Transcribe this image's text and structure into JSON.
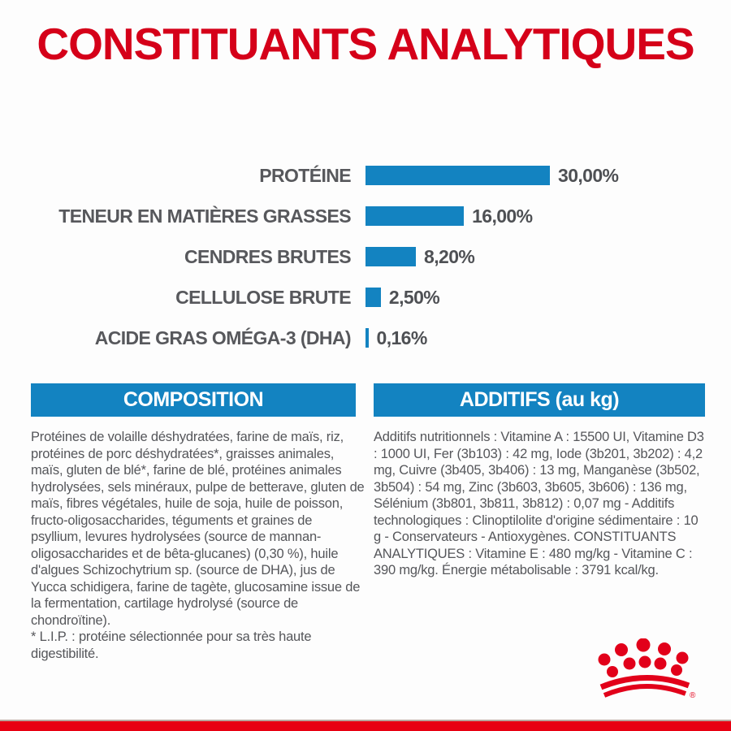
{
  "page": {
    "title": "CONSTITUANTS ANALYTIQUES"
  },
  "chart_data": {
    "type": "bar",
    "orientation": "horizontal",
    "title": "CONSTITUANTS ANALYTIQUES",
    "unit": "%",
    "categories": [
      "PROTÉINE",
      "TENEUR EN MATIÈRES GRASSES",
      "CENDRES BRUTES",
      "CELLULOSE BRUTE",
      "ACIDE GRAS OMÉGA-3 (DHA)"
    ],
    "values": [
      30.0,
      16.0,
      8.2,
      2.5,
      0.16
    ],
    "value_labels": [
      "30,00%",
      "16,00%",
      "8,20%",
      "2,50%",
      "0,16%"
    ],
    "xlim": [
      0,
      30
    ],
    "grid": false,
    "legend": false,
    "bar_color": "#1383c1"
  },
  "sections": {
    "composition": {
      "header": "COMPOSITION",
      "body": "Protéines de volaille déshydratées, farine de maïs, riz, protéines de porc déshydratées*, graisses animales, maïs, gluten de blé*, farine de blé, protéines animales hydrolysées, sels minéraux, pulpe de betterave, gluten de maïs, fibres végétales, huile de soja, huile de poisson, fructo-oligosaccharides, téguments et graines de psyllium, levures hydrolysées (source de mannan-oligosaccharides et de bêta-glucanes) (0,30 %), huile d'algues Schizochytrium sp. (source de DHA), jus de Yucca schidigera, farine de tagète, glucosamine issue de la fermentation, cartilage hydrolysé (source de chondroïtine).",
      "footnote": "* L.I.P. : protéine sélectionnée pour sa très haute digestibilité."
    },
    "additifs": {
      "header": "ADDITIFS (au kg)",
      "body": "Additifs nutritionnels : Vitamine A : 15500 UI, Vitamine D3 : 1000 UI, Fer (3b103) : 42 mg, Iode (3b201, 3b202) : 4,2 mg, Cuivre (3b405, 3b406) : 13 mg, Manganèse (3b502, 3b504) : 54 mg, Zinc (3b603, 3b605, 3b606) : 136 mg, Sélénium (3b801, 3b811, 3b812) : 0,07 mg - Additifs technologiques : Clinoptilolite d'origine sédimentaire : 10 g - Conservateurs - Antioxygènes. CONSTITUANTS ANALYTIQUES : Vitamine E : 480 mg/kg - Vitamine C : 390 mg/kg. Énergie métabolisable : 3791 kcal/kg."
    }
  },
  "branding": {
    "logo": "royal-canin-crown",
    "registered_mark": "®"
  },
  "colors": {
    "title_red": "#d50019",
    "bar_blue": "#1383c1",
    "header_blue": "#1383c1",
    "bottom_band_red": "#e80012",
    "crown_red": "#e2001a",
    "text_gray": "#55565a"
  }
}
